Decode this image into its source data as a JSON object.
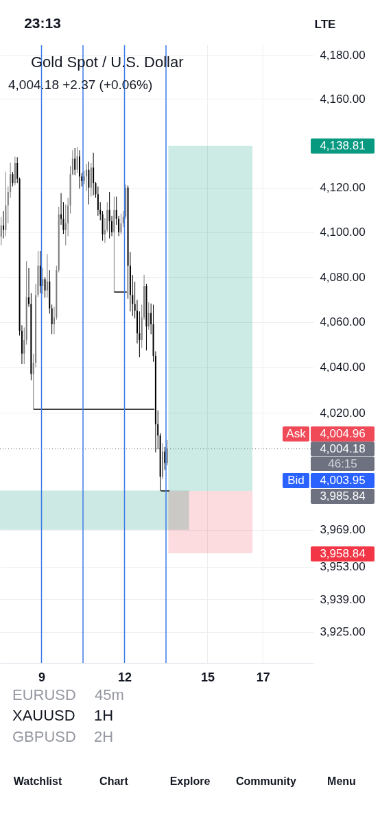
{
  "chart_data": {
    "type": "candlestick",
    "title": "Gold Spot / U.S. Dollar",
    "subtitle": "4,004.18 +2.37 (+0.06%)",
    "x": [
      7.542,
      7.625,
      7.708,
      7.792,
      7.875,
      7.958,
      8.042,
      8.125,
      8.208,
      8.292,
      8.375,
      8.458,
      8.542,
      8.625,
      8.708,
      8.792,
      8.875,
      8.958,
      9.042,
      9.125,
      9.208,
      9.292,
      9.375,
      9.458,
      9.542,
      9.625,
      9.708,
      9.792,
      9.875,
      9.958,
      10.042,
      10.125,
      10.208,
      10.292,
      10.375,
      10.458,
      10.542,
      10.625,
      10.708,
      10.792,
      10.875,
      10.958,
      11.042,
      11.125,
      11.208,
      11.292,
      11.375,
      11.458,
      11.542,
      11.625,
      11.708,
      11.792,
      11.875,
      11.958,
      12.042,
      12.125,
      12.208,
      12.292,
      12.375,
      12.458,
      12.542,
      12.625,
      12.708,
      12.792,
      12.875,
      12.958,
      13.042,
      13.125,
      13.208,
      13.292,
      13.375,
      13.458,
      13.542
    ],
    "ohlc": [
      [
        4098,
        4106.8,
        4094.1,
        4103
      ],
      [
        4103,
        4109.4,
        4097.2,
        4101
      ],
      [
        4101,
        4127.1,
        4098.2,
        4112
      ],
      [
        4112,
        4120.5,
        4104,
        4118
      ],
      [
        4118,
        4131.2,
        4115.4,
        4126
      ],
      [
        4126,
        4127,
        4120.5,
        4122
      ],
      [
        4122,
        4133.9,
        4121,
        4131
      ],
      [
        4131,
        4133.7,
        4122,
        4124
      ],
      [
        4124,
        4124.5,
        4054,
        4056
      ],
      [
        4056,
        4058.6,
        4041.4,
        4046
      ],
      [
        4046,
        4057.6,
        4041.4,
        4052
      ],
      [
        4052,
        4087,
        4050,
        4071
      ],
      [
        4071,
        4084,
        4066.7,
        4068
      ],
      [
        4068,
        4072.8,
        4034.3,
        4037
      ],
      [
        4037,
        4046,
        4021.5,
        4042
      ],
      [
        4042,
        4077,
        4040,
        4072
      ],
      [
        4072,
        4091.6,
        4071,
        4085
      ],
      [
        4085,
        4091.6,
        4072.8,
        4076
      ],
      [
        4076,
        4084,
        4072.3,
        4079
      ],
      [
        4079,
        4080,
        4070.8,
        4074
      ],
      [
        4074,
        4090.1,
        4070.8,
        4078
      ],
      [
        4078,
        4083,
        4063.7,
        4066
      ],
      [
        4066,
        4067.7,
        4054.6,
        4059
      ],
      [
        4059,
        4066.7,
        4054.6,
        4062
      ],
      [
        4062,
        4085,
        4061,
        4083
      ],
      [
        4083,
        4111.4,
        4082,
        4108
      ],
      [
        4108,
        4117.5,
        4103.3,
        4106
      ],
      [
        4106,
        4113.4,
        4099.2,
        4101
      ],
      [
        4101,
        4112.4,
        4094.1,
        4104
      ],
      [
        4104,
        4115.4,
        4098.2,
        4112
      ],
      [
        4112,
        4129.7,
        4108.3,
        4126
      ],
      [
        4126,
        4136.8,
        4125.6,
        4133
      ],
      [
        4133,
        4137.8,
        4125.6,
        4128
      ],
      [
        4128,
        4138.3,
        4126.6,
        4134
      ],
      [
        4134,
        4136.8,
        4119.5,
        4125
      ],
      [
        4125,
        4126.6,
        4120.5,
        4123
      ],
      [
        4123,
        4127.6,
        4121.5,
        4125
      ],
      [
        4125,
        4130.7,
        4118.5,
        4128
      ],
      [
        4128,
        4131.7,
        4112.4,
        4120
      ],
      [
        4120,
        4131,
        4116,
        4129
      ],
      [
        4129,
        4135.7,
        4116.5,
        4122
      ],
      [
        4122,
        4122.5,
        4115.4,
        4117
      ],
      [
        4117,
        4120.5,
        4107.3,
        4110
      ],
      [
        4110,
        4113.4,
        4105.3,
        4108
      ],
      [
        4108,
        4109.4,
        4096.2,
        4099
      ],
      [
        4099,
        4106.3,
        4095.2,
        4101
      ],
      [
        4101,
        4113.4,
        4100,
        4110
      ],
      [
        4110,
        4118,
        4097.2,
        4105
      ],
      [
        4105,
        4107.3,
        4098.2,
        4100
      ],
      [
        4100,
        4116,
        4073.3,
        4110
      ],
      [
        4110,
        4116,
        4103.3,
        4106
      ],
      [
        4106,
        4107.3,
        4098.2,
        4100
      ],
      [
        4100,
        4108.3,
        4099,
        4104
      ],
      [
        4104,
        4109.4,
        4102.3,
        4107
      ],
      [
        4107,
        4121.5,
        4106,
        4120
      ],
      [
        4120,
        4121,
        4070.3,
        4085
      ],
      [
        4085,
        4091.1,
        4064.7,
        4072
      ],
      [
        4072,
        4080.9,
        4062.7,
        4068
      ],
      [
        4068,
        4077.9,
        4061.6,
        4065
      ],
      [
        4065,
        4069.8,
        4050.5,
        4055
      ],
      [
        4055,
        4064.7,
        4044.4,
        4052
      ],
      [
        4052,
        4067.7,
        4048.5,
        4062
      ],
      [
        4062,
        4081,
        4061,
        4076
      ],
      [
        4076,
        4077,
        4047.4,
        4058
      ],
      [
        4058,
        4068.8,
        4056.6,
        4064
      ],
      [
        4064,
        4068.2,
        4054.6,
        4059
      ],
      [
        4059,
        4067.7,
        4042.4,
        4045
      ],
      [
        4045,
        4047,
        4002.6,
        4015
      ],
      [
        4015,
        4021,
        4004,
        4010
      ],
      [
        4010,
        4011,
        3985.84,
        3992
      ],
      [
        3992,
        4006.7,
        3991,
        4003
      ],
      [
        4003,
        4005,
        3995,
        3998
      ],
      [
        3998,
        4008,
        3997,
        4004.18
      ]
    ],
    "colors": [
      "#7a7a7a",
      "#000000",
      "#7a7a7a",
      "#7a7a7a",
      "#7a7a7a",
      "#000000",
      "#7a7a7a",
      "#000000",
      "#000000",
      "#000000",
      "#7a7a7a",
      "#7a7a7a",
      "#000000",
      "#000000",
      "#7a7a7a",
      "#7a7a7a",
      "#7a7a7a",
      "#000000",
      "#7a7a7a",
      "#000000",
      "#7a7a7a",
      "#000000",
      "#000000",
      "#7a7a7a",
      "#7a7a7a",
      "#7a7a7a",
      "#000000",
      "#000000",
      "#7a7a7a",
      "#7a7a7a",
      "#7a7a7a",
      "#7a7a7a",
      "#000000",
      "#7a7a7a",
      "#000000",
      "#000000",
      "#7a7a7a",
      "#7a7a7a",
      "#000000",
      "#7a7a7a",
      "#000000",
      "#000000",
      "#000000",
      "#000000",
      "#000000",
      "#7a7a7a",
      "#7a7a7a",
      "#000000",
      "#000000",
      "#7a7a7a",
      "#000000",
      "#000000",
      "#7a7a7a",
      "#7a7a7a",
      "#7a7a7a",
      "#000000",
      "#000000",
      "#000000",
      "#000000",
      "#000000",
      "#000000",
      "#7a7a7a",
      "#7a7a7a",
      "#000000",
      "#7a7a7a",
      "#000000",
      "#000000",
      "#000000",
      "#000000",
      "#000000",
      "#7a7a7a",
      "#000000",
      "#7a7a7a"
    ],
    "series": [
      {
        "type": "line",
        "x": [
          7.5,
          14.333
        ],
        "values": [
          null,
          null
        ],
        "lower": [
          3969,
          3969
        ],
        "upper": [
          3986,
          3986
        ],
        "color": "#cde9e3"
      },
      {
        "type": "line",
        "x": [
          13.583,
          16.625
        ],
        "values": [
          null,
          null
        ],
        "lower": [
          3985.84,
          3985.84
        ],
        "upper": [
          4138.81,
          4138.81
        ],
        "color": "#cdebe5"
      },
      {
        "type": "line",
        "x": [
          13.583,
          16.625
        ],
        "values": [
          null,
          null
        ],
        "lower": [
          3958.84,
          3958.84
        ],
        "upper": [
          3985.84,
          3985.84
        ],
        "color": "#fcdcdf"
      },
      {
        "type": "line",
        "x": [
          8.708,
          13.08
        ],
        "values": [
          4021.5,
          4021.5
        ],
        "color": "#000000"
      },
      {
        "type": "line",
        "x": [
          11.625,
          12.08
        ],
        "values": [
          4073.3,
          4073.3
        ],
        "color": "#000000"
      },
      {
        "type": "line",
        "x": [
          13.32,
          13.625
        ],
        "values": [
          3985.84,
          3985.84
        ],
        "color": "#000000"
      }
    ],
    "xlim": [
      7.5,
      18.83
    ],
    "xticks": [
      9,
      12,
      15,
      17
    ],
    "ylim": [
      3911.7,
      4184.5
    ],
    "log": true,
    "yticks": [
      {
        "value": 4180,
        "label": "4,180.00"
      },
      {
        "value": 4160,
        "label": "4,160.00"
      },
      {
        "value": 4120,
        "label": "4,120.00"
      },
      {
        "value": 4100,
        "label": "4,100.00"
      },
      {
        "value": 4080,
        "label": "4,080.00"
      },
      {
        "value": 4060,
        "label": "4,060.00"
      },
      {
        "value": 4040,
        "label": "4,040.00"
      },
      {
        "value": 4020,
        "label": "4,020.00"
      },
      {
        "value": 3969,
        "label": "3,969.00"
      },
      {
        "value": 3953,
        "label": "3,953.00"
      },
      {
        "value": 3939,
        "label": "3,939.00"
      },
      {
        "value": 3925,
        "label": "3,925.00"
      }
    ],
    "grid": true,
    "ref_lines": [
      {
        "axis": "x",
        "value": 9,
        "color": "#3d7be8"
      },
      {
        "axis": "x",
        "value": 10.5,
        "color": "#3d7be8"
      },
      {
        "axis": "x",
        "value": 12,
        "color": "#3d7be8"
      },
      {
        "axis": "x",
        "value": 13.5,
        "color": "#3d7be8"
      },
      {
        "axis": "y",
        "value": 4004.18,
        "label": "4,004.18",
        "color": "#6e7180",
        "line_style": "dotted"
      }
    ],
    "annotations": [
      "23:13",
      "LTE",
      "4,138.81",
      "Ask",
      "4,004.96",
      "46:15",
      "Bid",
      "4,003.95",
      "3,985.84",
      "3,958.84",
      "EURUSD",
      "45m",
      "XAUUSD",
      "1H",
      "GBPUSD",
      "2H",
      "Watchlist",
      "Chart",
      "Explore",
      "Community",
      "Menu"
    ]
  }
}
